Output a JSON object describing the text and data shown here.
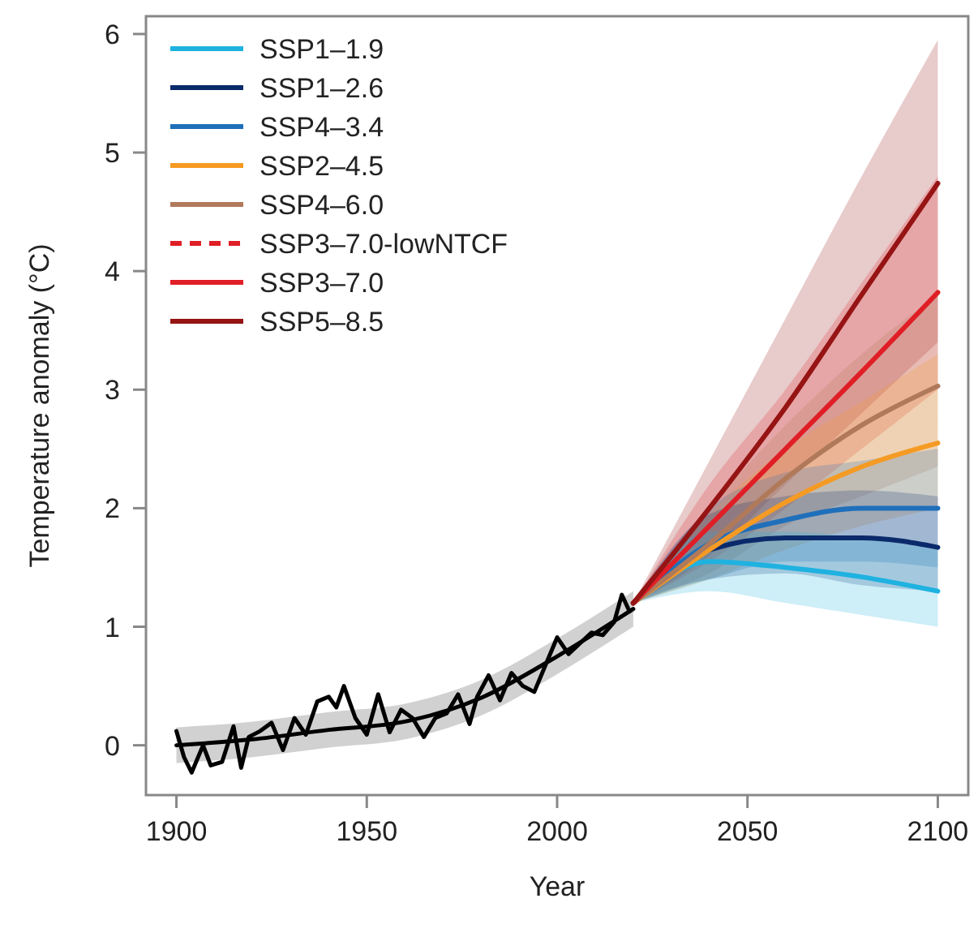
{
  "chart_data": {
    "type": "line",
    "xlabel": "Year",
    "ylabel": "Temperature anomaly (°C)",
    "xlim": [
      1892,
      2108
    ],
    "ylim": [
      -0.42,
      6.15
    ],
    "xticks": [
      1900,
      1950,
      2000,
      2050,
      2100
    ],
    "yticks": [
      0,
      1,
      2,
      3,
      4,
      5,
      6
    ],
    "legend": "top left",
    "series": [
      {
        "name": "SSP1–1.9",
        "color": "#1fb2e0",
        "x": [
          2020,
          2040,
          2060,
          2080,
          2100
        ],
        "values": [
          1.2,
          1.55,
          1.5,
          1.42,
          1.3
        ],
        "lower": [
          1.2,
          1.3,
          1.2,
          1.1,
          1.0
        ],
        "upper": [
          1.2,
          1.8,
          1.8,
          1.75,
          1.65
        ]
      },
      {
        "name": "SSP1–2.6",
        "color": "#0a2a6b",
        "x": [
          2020,
          2040,
          2060,
          2080,
          2100
        ],
        "values": [
          1.2,
          1.65,
          1.75,
          1.75,
          1.67
        ],
        "lower": [
          1.2,
          1.4,
          1.45,
          1.35,
          1.3
        ],
        "upper": [
          1.2,
          1.95,
          2.1,
          2.15,
          2.1
        ]
      },
      {
        "name": "SSP4–3.4",
        "color": "#1f6fba",
        "x": [
          2020,
          2040,
          2060,
          2080,
          2100
        ],
        "values": [
          1.2,
          1.7,
          1.9,
          2.0,
          2.0
        ],
        "lower": [
          1.2,
          1.4,
          1.55,
          1.55,
          1.5
        ],
        "upper": [
          1.2,
          2.0,
          2.3,
          2.4,
          2.5
        ]
      },
      {
        "name": "SSP2–4.5",
        "color": "#f59a23",
        "x": [
          2020,
          2040,
          2060,
          2080,
          2100
        ],
        "values": [
          1.2,
          1.65,
          2.05,
          2.35,
          2.55
        ],
        "lower": [
          1.2,
          1.4,
          1.65,
          1.85,
          2.0
        ],
        "upper": [
          1.2,
          1.95,
          2.5,
          2.9,
          3.3
        ]
      },
      {
        "name": "SSP4–6.0",
        "color": "#b07a5a",
        "x": [
          2020,
          2040,
          2060,
          2080,
          2100
        ],
        "values": [
          1.2,
          1.7,
          2.25,
          2.7,
          3.03
        ],
        "lower": [
          1.2,
          1.45,
          1.85,
          2.1,
          2.35
        ],
        "upper": [
          1.2,
          2.0,
          2.7,
          3.3,
          3.8
        ]
      },
      {
        "name": "SSP3–7.0-lowNTCF",
        "color": "#e01e26",
        "line_style": "dashed",
        "values": [
          null,
          null,
          null,
          null,
          null
        ]
      },
      {
        "name": "SSP3–7.0",
        "color": "#e01e26",
        "x": [
          2020,
          2040,
          2060,
          2080,
          2100
        ],
        "values": [
          1.2,
          1.85,
          2.5,
          3.15,
          3.82
        ],
        "lower": [
          1.2,
          1.55,
          2.0,
          2.5,
          3.0
        ],
        "upper": [
          1.2,
          2.2,
          3.0,
          3.9,
          4.8
        ]
      },
      {
        "name": "SSP5–8.5",
        "color": "#961414",
        "x": [
          2020,
          2040,
          2060,
          2080,
          2100
        ],
        "values": [
          1.2,
          2.0,
          2.85,
          3.8,
          4.74
        ],
        "lower": [
          1.2,
          1.6,
          2.2,
          2.8,
          3.4
        ],
        "upper": [
          1.2,
          2.4,
          3.6,
          4.8,
          5.95
        ]
      },
      {
        "color": "#000000",
        "x": [
          1900,
          1920,
          1940,
          1960,
          1980,
          2000,
          2020
        ],
        "values": [
          0.0,
          0.05,
          0.13,
          0.2,
          0.4,
          0.75,
          1.15
        ],
        "lower": [
          -0.15,
          -0.1,
          -0.02,
          0.05,
          0.25,
          0.6,
          1.0
        ],
        "upper": [
          0.15,
          0.2,
          0.28,
          0.35,
          0.55,
          0.9,
          1.3
        ]
      },
      {
        "color": "#000000",
        "x": [
          1900,
          1902,
          1904,
          1907,
          1909,
          1912,
          1915,
          1917,
          1919,
          1922,
          1925,
          1928,
          1931,
          1934,
          1937,
          1940,
          1942,
          1944,
          1947,
          1950,
          1953,
          1956,
          1959,
          1962,
          1965,
          1968,
          1971,
          1974,
          1977,
          1979,
          1982,
          1985,
          1988,
          1991,
          1994,
          1997,
          2000,
          2003,
          2006,
          2009,
          2012,
          2015,
          2017,
          2019
        ],
        "values": [
          0.12,
          -0.1,
          -0.23,
          0.0,
          -0.17,
          -0.14,
          0.16,
          -0.19,
          0.07,
          0.12,
          0.19,
          -0.04,
          0.23,
          0.09,
          0.37,
          0.41,
          0.32,
          0.5,
          0.23,
          0.09,
          0.43,
          0.11,
          0.3,
          0.23,
          0.07,
          0.23,
          0.27,
          0.43,
          0.18,
          0.41,
          0.59,
          0.38,
          0.61,
          0.5,
          0.45,
          0.68,
          0.91,
          0.77,
          0.86,
          0.95,
          0.93,
          1.04,
          1.27,
          1.13
        ]
      }
    ]
  }
}
